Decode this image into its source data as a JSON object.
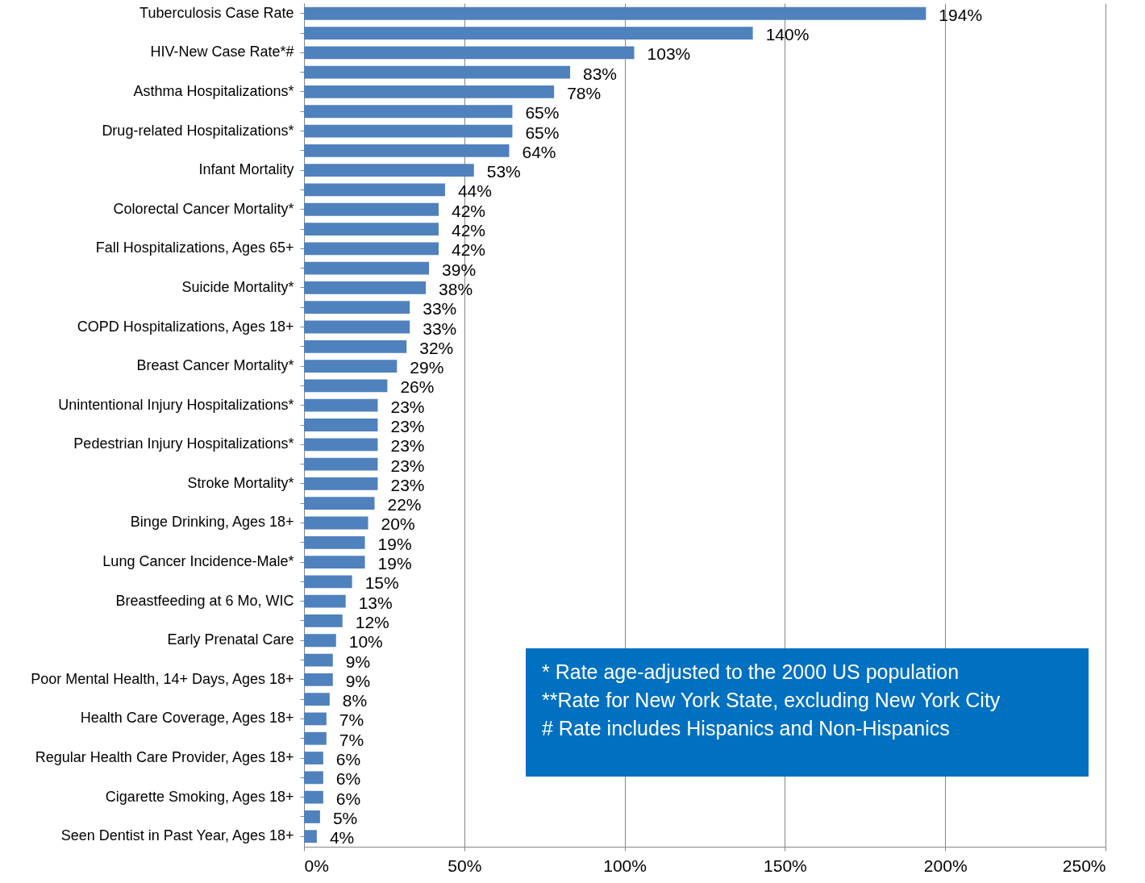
{
  "chart_data": {
    "type": "bar",
    "orientation": "horizontal",
    "categories": [
      "Tuberculosis Case Rate",
      null,
      "HIV-New Case Rate*#",
      null,
      "Asthma Hospitalizations*",
      null,
      "Drug-related Hospitalizations*",
      null,
      "Infant Mortality",
      null,
      "Colorectal Cancer Mortality*",
      null,
      "Fall Hospitalizations, Ages 65+",
      null,
      "Suicide Mortality*",
      null,
      "COPD Hospitalizations, Ages 18+",
      null,
      "Breast Cancer Mortality*",
      null,
      "Unintentional Injury Hospitalizations*",
      null,
      "Pedestrian Injury Hospitalizations*",
      null,
      "Stroke Mortality*",
      null,
      "Binge Drinking, Ages 18+",
      null,
      "Lung Cancer Incidence-Male*",
      null,
      "Breastfeeding at 6 Mo, WIC",
      null,
      "Early Prenatal Care",
      null,
      "Poor Mental Health, 14+ Days, Ages 18+",
      null,
      "Health Care Coverage, Ages 18+",
      null,
      "Regular Health Care Provider, Ages 18+",
      null,
      "Cigarette Smoking, Ages 18+",
      null,
      "Seen Dentist in Past Year, Ages 18+"
    ],
    "values": [
      194,
      140,
      103,
      83,
      78,
      65,
      65,
      64,
      53,
      44,
      42,
      42,
      42,
      39,
      38,
      33,
      33,
      32,
      29,
      26,
      23,
      23,
      23,
      23,
      23,
      22,
      20,
      19,
      19,
      15,
      13,
      12,
      10,
      9,
      9,
      8,
      7,
      7,
      6,
      6,
      6,
      5,
      4
    ],
    "value_labels": [
      "194%",
      "140%",
      "103%",
      "83%",
      "78%",
      "65%",
      "65%",
      "64%",
      "53%",
      "44%",
      "42%",
      "42%",
      "42%",
      "39%",
      "38%",
      "33%",
      "33%",
      "32%",
      "29%",
      "26%",
      "23%",
      "23%",
      "23%",
      "23%",
      "23%",
      "22%",
      "20%",
      "19%",
      "19%",
      "15%",
      "13%",
      "12%",
      "10%",
      "9%",
      "9%",
      "8%",
      "7%",
      "7%",
      "6%",
      "6%",
      "6%",
      "5%",
      "4%"
    ],
    "color": "#4f81bd",
    "xlim": [
      0,
      250
    ],
    "xticks": [
      {
        "value": 0,
        "label": "0%"
      },
      {
        "value": 50,
        "label": "50%"
      },
      {
        "value": 100,
        "label": "100%"
      },
      {
        "value": 150,
        "label": "150%"
      },
      {
        "value": 200,
        "label": "200%"
      },
      {
        "value": 250,
        "label": "250%"
      }
    ],
    "grid": "x",
    "annotations": [
      "* Rate age-adjusted to the 2000 US population",
      "**Rate for New York State, excluding New York City",
      "# Rate includes Hispanics and Non-Hispanics"
    ]
  }
}
